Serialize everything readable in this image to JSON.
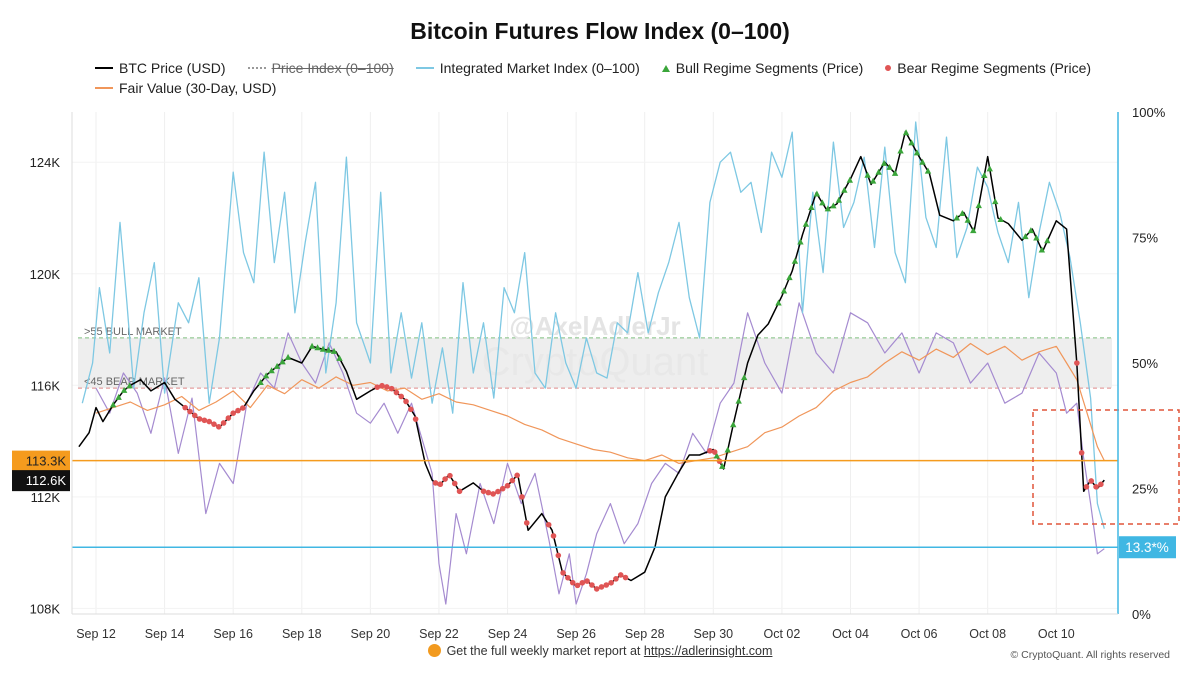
{
  "title": "Bitcoin Futures Flow Index (0–100)",
  "legend": {
    "btc": "BTC Price (USD)",
    "price_index": "Price Index (0–100)",
    "imi": "Integrated Market Index (0–100)",
    "bull": "Bull Regime Segments (Price)",
    "bear": "Bear Regime Segments (Price)",
    "fair": "Fair Value (30-Day, USD)"
  },
  "footer": {
    "text": "Get the full weekly market report at",
    "link": "https://adlerinsight.com",
    "copyright": "© CryptoQuant. All rights reserved"
  },
  "watermark": {
    "handle": "@AxelAdlerJr",
    "brand": "CryptoQuant"
  },
  "colors": {
    "btc": "#000000",
    "imi": "#7ec8e3",
    "price_index": "#a58bd0",
    "fair": "#f0965a",
    "bull": "#3aa53a",
    "bear": "#e05555",
    "orange": "#f59b1e",
    "blue": "#40b7e3"
  },
  "chart_data": {
    "type": "line",
    "title": "Bitcoin Futures Flow Index (0–100)",
    "x_ticks": [
      "Sep 12",
      "Sep 14",
      "Sep 16",
      "Sep 18",
      "Sep 20",
      "Sep 22",
      "Sep 24",
      "Sep 26",
      "Sep 28",
      "Sep 30",
      "Oct 02",
      "Oct 04",
      "Oct 06",
      "Oct 08",
      "Oct 10"
    ],
    "x_range": [
      11.3,
      41.8
    ],
    "left_axis": {
      "ticks": [
        "108K",
        "112K",
        "116K",
        "120K",
        "124K"
      ],
      "ylim": [
        107800,
        125800
      ]
    },
    "right_axis": {
      "ticks": [
        "0%",
        "25%",
        "50%",
        "75%",
        "100%"
      ],
      "ylim": [
        0,
        100
      ]
    },
    "bands": [
      {
        "label": ">55 BULL MARKET",
        "value": 55
      },
      {
        "label": "<45 BEAR MARKET",
        "value": 45
      }
    ],
    "reference_lines": [
      {
        "label": "113.3K",
        "value": 113300,
        "axis": "left"
      },
      {
        "label": "13.3*%",
        "value": 13.3,
        "axis": "right"
      }
    ],
    "current_price_label": "112.6K",
    "series": [
      {
        "name": "BTC Price (USD)",
        "axis": "left",
        "x": [
          11.5,
          11.8,
          12.0,
          12.2,
          12.5,
          12.8,
          13.0,
          13.3,
          13.6,
          14.0,
          14.3,
          14.6,
          15.0,
          15.3,
          15.6,
          16.0,
          16.3,
          16.6,
          17.0,
          17.3,
          17.6,
          18.0,
          18.3,
          18.6,
          19.0,
          19.3,
          19.6,
          20.0,
          20.3,
          20.6,
          21.0,
          21.3,
          21.6,
          21.8,
          22.0,
          22.3,
          22.6,
          23.0,
          23.3,
          23.6,
          24.0,
          24.3,
          24.6,
          25.0,
          25.3,
          25.6,
          26.0,
          26.3,
          26.6,
          27.0,
          27.3,
          27.6,
          28.0,
          28.3,
          28.6,
          29.0,
          29.3,
          29.6,
          30.0,
          30.3,
          30.6,
          31.0,
          31.3,
          31.6,
          32.0,
          32.3,
          32.6,
          33.0,
          33.3,
          33.6,
          34.0,
          34.3,
          34.6,
          35.0,
          35.3,
          35.6,
          36.0,
          36.3,
          36.6,
          37.0,
          37.3,
          37.6,
          38.0,
          38.3,
          38.6,
          39.0,
          39.3,
          39.6,
          40.0,
          40.3,
          40.6,
          40.8,
          41.0,
          41.2,
          41.4
        ],
        "y": [
          113800,
          114300,
          115200,
          114700,
          115300,
          115800,
          116000,
          116200,
          115800,
          116100,
          115500,
          115200,
          114800,
          114700,
          114500,
          115000,
          115200,
          115800,
          116400,
          116700,
          117000,
          116800,
          117400,
          117300,
          117200,
          116500,
          115500,
          115800,
          116000,
          115900,
          115500,
          114900,
          113200,
          112600,
          112400,
          112800,
          112200,
          112500,
          112200,
          112100,
          112400,
          112800,
          110800,
          111400,
          110800,
          109300,
          108800,
          109000,
          108700,
          108900,
          109200,
          109000,
          109300,
          110200,
          112000,
          112900,
          113500,
          113500,
          113700,
          113000,
          114700,
          116800,
          117800,
          118200,
          119200,
          120100,
          121400,
          122900,
          122300,
          122500,
          123400,
          124200,
          123200,
          124000,
          123600,
          125100,
          124200,
          123600,
          122100,
          121900,
          122200,
          121500,
          124200,
          122000,
          121800,
          121200,
          121600,
          120800,
          121900,
          121600,
          116800,
          112200,
          112600,
          112300,
          112600
        ]
      },
      {
        "name": "Integrated Market Index (0–100)",
        "axis": "right",
        "x": [
          11.6,
          11.9,
          12.1,
          12.4,
          12.7,
          12.9,
          13.1,
          13.4,
          13.7,
          14.0,
          14.4,
          14.7,
          15.0,
          15.3,
          15.6,
          16.0,
          16.3,
          16.6,
          16.9,
          17.2,
          17.5,
          17.8,
          18.1,
          18.4,
          18.7,
          19.0,
          19.3,
          19.6,
          20.0,
          20.3,
          20.6,
          20.9,
          21.2,
          21.5,
          21.8,
          22.1,
          22.4,
          22.7,
          23.0,
          23.3,
          23.6,
          23.9,
          24.2,
          24.5,
          24.8,
          25.1,
          25.4,
          25.7,
          26.0,
          26.3,
          26.6,
          26.9,
          27.2,
          27.5,
          27.8,
          28.1,
          28.4,
          28.7,
          29.0,
          29.3,
          29.6,
          29.9,
          30.2,
          30.5,
          30.8,
          31.1,
          31.4,
          31.7,
          32.0,
          32.3,
          32.6,
          32.9,
          33.2,
          33.5,
          33.8,
          34.1,
          34.4,
          34.7,
          35.0,
          35.3,
          35.6,
          35.9,
          36.2,
          36.5,
          36.8,
          37.1,
          37.4,
          37.7,
          38.0,
          38.3,
          38.6,
          38.9,
          39.2,
          39.5,
          39.8,
          40.1,
          40.4,
          40.7,
          41.0,
          41.2,
          41.4
        ],
        "y": [
          42,
          50,
          65,
          52,
          78,
          62,
          45,
          60,
          70,
          44,
          62,
          58,
          67,
          42,
          55,
          88,
          72,
          66,
          92,
          70,
          84,
          60,
          74,
          86,
          48,
          62,
          91,
          58,
          50,
          84,
          48,
          60,
          47,
          58,
          42,
          53,
          40,
          66,
          48,
          58,
          43,
          65,
          60,
          72,
          48,
          45,
          60,
          50,
          45,
          55,
          48,
          47,
          58,
          56,
          68,
          56,
          64,
          70,
          78,
          63,
          55,
          82,
          90,
          92,
          84,
          86,
          76,
          92,
          87,
          96,
          60,
          84,
          68,
          94,
          77,
          82,
          91,
          73,
          93,
          72,
          66,
          98,
          79,
          73,
          95,
          71,
          77,
          89,
          85,
          76,
          70,
          82,
          63,
          76,
          86,
          80,
          71,
          58,
          43,
          22,
          17
        ]
      },
      {
        "name": "Price Index (0–100)",
        "axis": "right",
        "x": [
          12.0,
          12.4,
          12.8,
          13.2,
          13.6,
          14.0,
          14.4,
          14.8,
          15.2,
          15.6,
          16.0,
          16.4,
          16.8,
          17.2,
          17.6,
          18.0,
          18.4,
          18.8,
          19.2,
          19.6,
          20.0,
          20.4,
          20.8,
          21.2,
          21.5,
          21.8,
          22.0,
          22.2,
          22.5,
          22.8,
          23.2,
          23.6,
          24.0,
          24.4,
          24.8,
          25.2,
          25.5,
          25.8,
          26.0,
          26.3,
          26.6,
          27.0,
          27.4,
          27.8,
          28.2,
          28.6,
          29.0,
          29.4,
          29.8,
          30.2,
          30.6,
          31.0,
          31.5,
          32.0,
          32.5,
          33.0,
          33.5,
          34.0,
          34.5,
          35.0,
          35.5,
          36.0,
          36.5,
          37.0,
          37.5,
          38.0,
          38.5,
          39.0,
          39.5,
          40.0,
          40.3,
          40.6,
          40.8,
          41.0,
          41.2,
          41.4
        ],
        "y": [
          45,
          40,
          48,
          44,
          36,
          47,
          32,
          43,
          20,
          30,
          26,
          42,
          48,
          45,
          56,
          50,
          46,
          54,
          48,
          40,
          38,
          42,
          36,
          42,
          35,
          28,
          10,
          2,
          20,
          12,
          26,
          18,
          30,
          22,
          28,
          15,
          4,
          12,
          2,
          8,
          16,
          22,
          14,
          18,
          26,
          30,
          28,
          36,
          32,
          42,
          46,
          60,
          50,
          44,
          62,
          52,
          48,
          60,
          58,
          52,
          56,
          48,
          56,
          54,
          46,
          50,
          42,
          44,
          52,
          48,
          40,
          42,
          31,
          22,
          12,
          13
        ]
      },
      {
        "name": "Fair Value (30-Day, USD)",
        "axis": "left",
        "x": [
          12.0,
          12.5,
          13.0,
          13.5,
          14.0,
          14.5,
          15.0,
          15.5,
          16.0,
          16.5,
          17.0,
          17.5,
          18.0,
          18.5,
          19.0,
          19.5,
          20.0,
          20.5,
          21.0,
          21.5,
          22.0,
          22.5,
          23.0,
          23.5,
          24.0,
          24.5,
          25.0,
          25.5,
          26.0,
          26.5,
          27.0,
          27.5,
          28.0,
          28.5,
          29.0,
          29.5,
          30.0,
          30.5,
          31.0,
          31.5,
          32.0,
          32.5,
          33.0,
          33.5,
          34.0,
          34.5,
          35.0,
          35.5,
          36.0,
          36.5,
          37.0,
          37.5,
          38.0,
          38.5,
          39.0,
          39.5,
          40.0,
          40.3,
          40.6,
          40.9,
          41.2,
          41.4
        ],
        "y": [
          115000,
          115200,
          115400,
          115100,
          115300,
          115600,
          115100,
          115400,
          115800,
          115200,
          116000,
          115700,
          116200,
          115900,
          116300,
          116000,
          116100,
          115800,
          115900,
          115500,
          115700,
          115400,
          115300,
          115100,
          114900,
          114600,
          114400,
          114100,
          113900,
          113700,
          113600,
          113400,
          113300,
          113500,
          113200,
          113300,
          113400,
          113600,
          113800,
          114300,
          114500,
          114900,
          115200,
          115800,
          116100,
          116300,
          116800,
          117200,
          116900,
          117300,
          117000,
          117500,
          117100,
          117400,
          116900,
          117200,
          117400,
          116800,
          116200,
          115000,
          113800,
          113300
        ]
      }
    ],
    "bull_segments_x": [
      [
        12.5,
        13.0
      ],
      [
        16.8,
        17.6
      ],
      [
        18.3,
        19.2
      ],
      [
        30.1,
        31.0
      ],
      [
        31.9,
        34.0
      ],
      [
        34.5,
        36.4
      ],
      [
        37.1,
        38.4
      ],
      [
        39.1,
        39.8
      ]
    ],
    "bear_segments_x": [
      [
        14.6,
        16.4
      ],
      [
        20.2,
        21.4
      ],
      [
        21.9,
        22.6
      ],
      [
        23.3,
        24.6
      ],
      [
        25.2,
        27.5
      ],
      [
        29.9,
        30.2
      ],
      [
        40.6,
        41.4
      ]
    ]
  }
}
